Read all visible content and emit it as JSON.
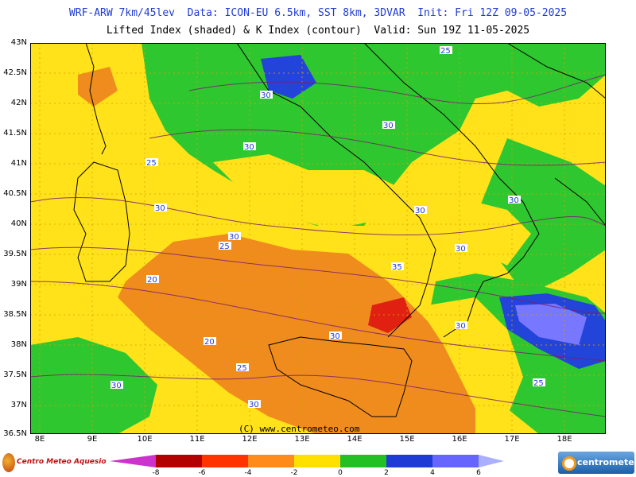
{
  "header": {
    "line1": "WRF-ARW 7km/45lev  Data: ICON-EU 6.5km, SST 8km, 3DVAR  Init: Fri 12Z 09-05-2025",
    "line2": "Lifted Index (shaded) & K Index (contour)  Valid: Sun 19Z 11-05-2025"
  },
  "lat_labels": [
    "43N",
    "42.5N",
    "42N",
    "41.5N",
    "41N",
    "40.5N",
    "40N",
    "39.5N",
    "39N",
    "38.5N",
    "38N",
    "37.5N",
    "37N",
    "36.5N"
  ],
  "lon_labels": [
    "8E",
    "9E",
    "10E",
    "11E",
    "12E",
    "13E",
    "14E",
    "15E",
    "16E",
    "17E",
    "18E"
  ],
  "credit": "(C) www.centrometeo.com",
  "logos": {
    "left": "Centro Meteo Aquesio",
    "right": "centrometeo"
  },
  "colorbar": {
    "ticks": [
      "-8",
      "-6",
      "-4",
      "-2",
      "0",
      "2",
      "4",
      "6"
    ],
    "colors": [
      "#cc00cc",
      "#b30000",
      "#ff3300",
      "#ff8c1a",
      "#ffe000",
      "#22c022",
      "#1f3bd6",
      "#6666ff"
    ]
  },
  "contour_labels": [
    "25",
    "30",
    "30",
    "30",
    "25",
    "30",
    "30",
    "30",
    "25",
    "30",
    "30",
    "35",
    "20",
    "20",
    "25",
    "30",
    "30",
    "30",
    "25",
    "30"
  ],
  "legend_colors": {
    "orange": "#f08c1e",
    "yellow": "#ffe21a",
    "green": "#2fc72f",
    "blue": "#2244d8",
    "lightblue": "#7777ff",
    "red": "#e02010"
  }
}
